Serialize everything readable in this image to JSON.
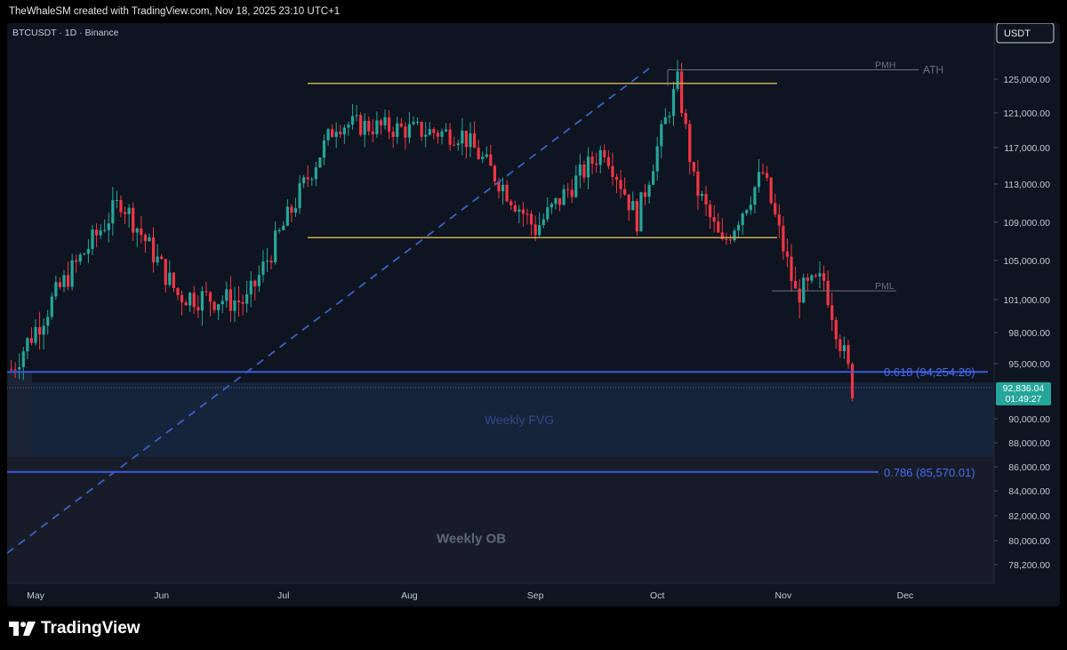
{
  "header": {
    "attribution": "TheWhaleSM created with TradingView.com, Nov 18, 2025 23:10 UTC+1"
  },
  "chart_data": {
    "type": "candlestick",
    "symbol_label": "BTCUSDT · 1D · Binance",
    "currency_label": "USDT",
    "price_axis_ticks": [
      "125,000.00",
      "121,000.00",
      "117,000.00",
      "113,000.00",
      "109,000.00",
      "105,000.00",
      "101,000.00",
      "98,000.00",
      "95,000.00",
      "90,000.00",
      "88,000.00",
      "86,000.00",
      "84,000.00",
      "82,000.00",
      "80,000.00",
      "78,200.00"
    ],
    "time_axis_labels": [
      "May",
      "Jun",
      "Jul",
      "Aug",
      "Sep",
      "Oct",
      "Nov",
      "Dec"
    ],
    "last_price": {
      "value": "92,836.04",
      "countdown": "01:49:27"
    },
    "annotations": {
      "fib_618": "0.618 (94,254.20)",
      "fib_786": "0.786 (85,570.01)",
      "weekly_fvg": "Weekly FVG",
      "weekly_ob": "Weekly OB",
      "pmh": "PMH",
      "ath": "ATH",
      "pml": "PML"
    },
    "levels": {
      "range_high": 124500,
      "range_low": 107400,
      "fib_618": 94254.2,
      "fib_786": 85570.01,
      "pmh": 126100,
      "pml": 101900,
      "last": 92836.04,
      "fvg_top": 93300,
      "fvg_bottom": 86800
    },
    "key_points": [
      {
        "date": "2025-04-25",
        "close": 94500
      },
      {
        "date": "2025-05-08",
        "close": 102800
      },
      {
        "date": "2025-05-22",
        "close": 111300
      },
      {
        "date": "2025-06-05",
        "close": 101500
      },
      {
        "date": "2025-06-22",
        "close": 100800
      },
      {
        "date": "2025-07-14",
        "close": 119800
      },
      {
        "date": "2025-08-14",
        "close": 118500
      },
      {
        "date": "2025-09-01",
        "close": 108300
      },
      {
        "date": "2025-09-18",
        "close": 117000
      },
      {
        "date": "2025-09-26",
        "close": 109300
      },
      {
        "date": "2025-10-06",
        "close": 124700
      },
      {
        "date": "2025-10-10",
        "close": 113200
      },
      {
        "date": "2025-10-17",
        "close": 106500
      },
      {
        "date": "2025-10-27",
        "close": 114200
      },
      {
        "date": "2025-11-04",
        "close": 101600
      },
      {
        "date": "2025-11-11",
        "close": 103000
      },
      {
        "date": "2025-11-18",
        "close": 92836
      }
    ],
    "colors": {
      "up": "#26a69a",
      "down": "#f23645",
      "fib": "#3b5bdb",
      "range": "#c8a95a",
      "background": "#0e1420"
    }
  },
  "footer": {
    "logo_text": "TradingView"
  }
}
